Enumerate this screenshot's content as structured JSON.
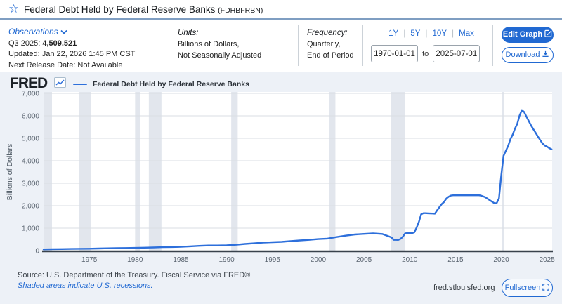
{
  "header": {
    "title": "Federal Debt Held by Federal Reserve Banks",
    "series_id": "(FDHBFRBN)",
    "star_icon": "☆"
  },
  "info_bar": {
    "observations": {
      "label": "Observations",
      "latest_period": "Q3 2025: ",
      "latest_value": "4,509.521",
      "updated": "Updated: Jan 22, 2026 1:45 PM CST",
      "next_release": "Next Release Date: Not Available"
    },
    "units": {
      "label": "Units:",
      "line1": "Billions of Dollars,",
      "line2": "Not Seasonally Adjusted"
    },
    "frequency": {
      "label": "Frequency:",
      "line1": "Quarterly,",
      "line2": "End of Period"
    },
    "range": {
      "presets": [
        "1Y",
        "5Y",
        "10Y",
        "Max"
      ],
      "start_date": "1970-01-01",
      "to_label": "to",
      "end_date": "2025-07-01"
    },
    "actions": {
      "edit_graph": "Edit Graph",
      "download": "Download"
    }
  },
  "chart_header": {
    "logo": "FRED",
    "legend_label": "Federal Debt Held by Federal Reserve Banks"
  },
  "footer": {
    "source_line": "Source: U.S. Department of the Treasury. Fiscal Service via FRED®",
    "recessions_note": "Shaded areas indicate U.S. recessions.",
    "site": "fred.stlouisfed.org",
    "fullscreen_label": "Fullscreen"
  },
  "colors": {
    "accent_blue": "#2169d2",
    "line_blue": "#2d6fdb",
    "chart_bg": "#edf1f7",
    "plot_bg": "#ffffff",
    "grid": "#d9dde3",
    "recession_band": "#e2e6ed",
    "axis": "#39424c",
    "tick_text": "#5a6470",
    "header_rule": "#7f9ec2"
  },
  "chart_data": {
    "type": "line",
    "title": "Federal Debt Held by Federal Reserve Banks",
    "xlabel": "",
    "ylabel": "Billions of Dollars",
    "x_range": [
      1970,
      2025.56
    ],
    "ylim": [
      0,
      7000
    ],
    "grid": true,
    "legend_position": "top",
    "y_ticks": [
      {
        "value": 0,
        "label": "0"
      },
      {
        "value": 1000,
        "label": "1,000"
      },
      {
        "value": 2000,
        "label": "2,000"
      },
      {
        "value": 3000,
        "label": "3,000"
      },
      {
        "value": 4000,
        "label": "4,000"
      },
      {
        "value": 5000,
        "label": "5,000"
      },
      {
        "value": 6000,
        "label": "6,000"
      },
      {
        "value": 7000,
        "label": "7,000"
      }
    ],
    "x_ticks": [
      1975,
      1980,
      1985,
      1990,
      1995,
      2000,
      2005,
      2010,
      2015,
      2020,
      2025
    ],
    "recession_bands": [
      [
        1970.0,
        1970.92
      ],
      [
        1973.88,
        1975.17
      ],
      [
        1980.0,
        1980.54
      ],
      [
        1981.5,
        1982.88
      ],
      [
        1990.5,
        1991.21
      ],
      [
        2001.17,
        2001.88
      ],
      [
        2007.92,
        2009.46
      ],
      [
        2020.08,
        2020.33
      ]
    ],
    "series": [
      {
        "name": "Federal Debt Held by Federal Reserve Banks",
        "points": [
          [
            1970,
            57.7
          ],
          [
            1971,
            65.5
          ],
          [
            1972,
            69.9
          ],
          [
            1973,
            75.2
          ],
          [
            1974,
            80.6
          ],
          [
            1975,
            85.0
          ],
          [
            1976,
            94.7
          ],
          [
            1977,
            102.5
          ],
          [
            1978,
            109.6
          ],
          [
            1979,
            115.6
          ],
          [
            1980,
            121.3
          ],
          [
            1981,
            131.0
          ],
          [
            1982,
            139.3
          ],
          [
            1983,
            151.9
          ],
          [
            1984,
            160.9
          ],
          [
            1985,
            169.8
          ],
          [
            1986,
            190.9
          ],
          [
            1987,
            212.0
          ],
          [
            1988,
            229.2
          ],
          [
            1989,
            228.4
          ],
          [
            1990,
            234.4
          ],
          [
            1991,
            258.6
          ],
          [
            1992,
            296.4
          ],
          [
            1993,
            325.7
          ],
          [
            1994,
            355.1
          ],
          [
            1995,
            374.1
          ],
          [
            1996,
            390.9
          ],
          [
            1997,
            424.5
          ],
          [
            1998,
            452.5
          ],
          [
            1999,
            478.1
          ],
          [
            2000,
            511.4
          ],
          [
            2001,
            534.1
          ],
          [
            2002,
            604.2
          ],
          [
            2003,
            666.7
          ],
          [
            2004,
            717.8
          ],
          [
            2005,
            744.2
          ],
          [
            2006,
            768.9
          ],
          [
            2007,
            740.6
          ],
          [
            2008,
            591.0
          ],
          [
            2008.25,
            479.0
          ],
          [
            2008.5,
            476.6
          ],
          [
            2008.75,
            475.9
          ],
          [
            2009,
            521.0
          ],
          [
            2009.25,
            623.0
          ],
          [
            2009.5,
            769.0
          ],
          [
            2009.75,
            776.6
          ],
          [
            2010,
            777.0
          ],
          [
            2010.25,
            777.0
          ],
          [
            2010.5,
            811.0
          ],
          [
            2010.75,
            1021.5
          ],
          [
            2011,
            1279.5
          ],
          [
            2011.25,
            1617.0
          ],
          [
            2011.5,
            1665.0
          ],
          [
            2011.75,
            1664.5
          ],
          [
            2012,
            1660.0
          ],
          [
            2012.5,
            1650.0
          ],
          [
            2012.75,
            1645.3
          ],
          [
            2013,
            1796.2
          ],
          [
            2013.25,
            1937.2
          ],
          [
            2013.5,
            2072.3
          ],
          [
            2013.75,
            2164.5
          ],
          [
            2014,
            2320.0
          ],
          [
            2014.25,
            2396.5
          ],
          [
            2014.5,
            2448.5
          ],
          [
            2014.75,
            2461.4
          ],
          [
            2015.5,
            2461.9
          ],
          [
            2016.5,
            2463.5
          ],
          [
            2017.5,
            2465.0
          ],
          [
            2017.75,
            2454.2
          ],
          [
            2018.25,
            2378.0
          ],
          [
            2018.75,
            2240.7
          ],
          [
            2019.25,
            2110.0
          ],
          [
            2019.5,
            2113.3
          ],
          [
            2019.75,
            2328.5
          ],
          [
            2020,
            3344.4
          ],
          [
            2020.25,
            4219.3
          ],
          [
            2020.5,
            4445.9
          ],
          [
            2020.75,
            4658.2
          ],
          [
            2021,
            4962.5
          ],
          [
            2021.25,
            5161.8
          ],
          [
            2021.5,
            5433.7
          ],
          [
            2021.75,
            5649.8
          ],
          [
            2022,
            6012.2
          ],
          [
            2022.25,
            6254.9
          ],
          [
            2022.5,
            6173.2
          ],
          [
            2022.75,
            5966.6
          ],
          [
            2023,
            5774.8
          ],
          [
            2023.25,
            5574.8
          ],
          [
            2023.5,
            5406.0
          ],
          [
            2023.75,
            5251.0
          ],
          [
            2024,
            5078.0
          ],
          [
            2024.25,
            4925.0
          ],
          [
            2024.5,
            4771.0
          ],
          [
            2024.75,
            4678.0
          ],
          [
            2025,
            4630.0
          ],
          [
            2025.25,
            4560.0
          ],
          [
            2025.5,
            4509.5
          ]
        ]
      }
    ]
  }
}
